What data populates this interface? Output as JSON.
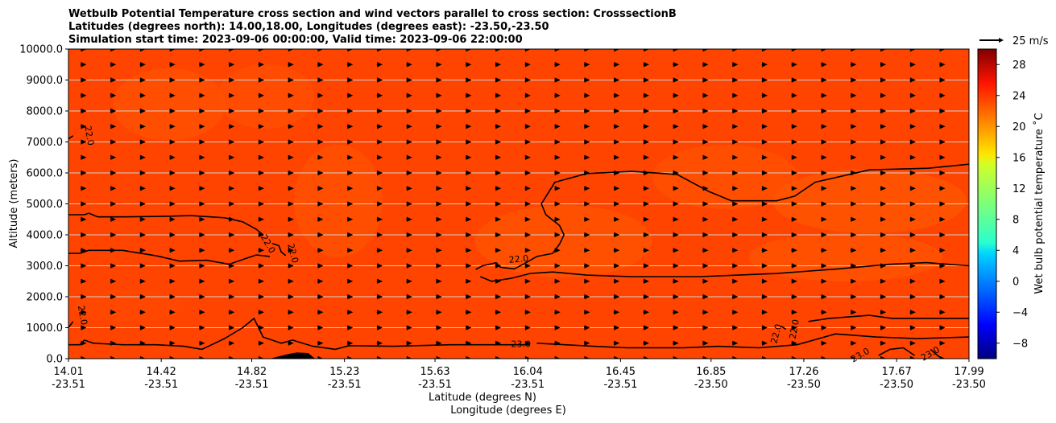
{
  "title_lines": [
    "Wetbulb Potential Temperature cross section and wind vectors parallel to cross section: CrosssectionB",
    "Latitudes (degrees north): 14.00,18.00, Longitudes (degrees east): -23.50,-23.50",
    "Simulation start time: 2023-09-06 00:00:00, Valid time: 2023-09-06 22:00:00"
  ],
  "chart_data": {
    "type": "heatmap",
    "subtype": "filled-contour cross section with wind vectors",
    "ylabel": "Altitude (meters)",
    "xlabel_lines": [
      "Latitude (degrees N)",
      "Longitude (degrees E)"
    ],
    "ylim": [
      0,
      10000
    ],
    "xlim": [
      14.01,
      17.99
    ],
    "y_ticks": [
      {
        "value": 0,
        "label": "0.0"
      },
      {
        "value": 1000,
        "label": "1000.0"
      },
      {
        "value": 2000,
        "label": "2000.0"
      },
      {
        "value": 3000,
        "label": "3000.0"
      },
      {
        "value": 4000,
        "label": "4000.0"
      },
      {
        "value": 5000,
        "label": "5000.0"
      },
      {
        "value": 6000,
        "label": "6000.0"
      },
      {
        "value": 7000,
        "label": "7000.0"
      },
      {
        "value": 8000,
        "label": "8000.0"
      },
      {
        "value": 9000,
        "label": "9000.0"
      },
      {
        "value": 10000,
        "label": "10000.0"
      }
    ],
    "x_ticks": [
      {
        "value": 14.01,
        "lat": "14.01",
        "lon": "-23.51"
      },
      {
        "value": 14.42,
        "lat": "14.42",
        "lon": "-23.51"
      },
      {
        "value": 14.82,
        "lat": "14.82",
        "lon": "-23.51"
      },
      {
        "value": 15.23,
        "lat": "15.23",
        "lon": "-23.51"
      },
      {
        "value": 15.63,
        "lat": "15.63",
        "lon": "-23.51"
      },
      {
        "value": 16.04,
        "lat": "16.04",
        "lon": "-23.51"
      },
      {
        "value": 16.45,
        "lat": "16.45",
        "lon": "-23.51"
      },
      {
        "value": 16.85,
        "lat": "16.85",
        "lon": "-23.50"
      },
      {
        "value": 17.26,
        "lat": "17.26",
        "lon": "-23.50"
      },
      {
        "value": 17.67,
        "lat": "17.67",
        "lon": "-23.50"
      },
      {
        "value": 17.99,
        "lat": "17.99",
        "lon": "-23.50"
      }
    ],
    "grid": "horizontal",
    "colorbar": {
      "label": "Wet bulb potential temperature ˚C",
      "vmin": -10,
      "vmax": 30,
      "colormap": "jet",
      "ticks": [
        {
          "value": -8,
          "label": "−8"
        },
        {
          "value": -4,
          "label": "−4"
        },
        {
          "value": 0,
          "label": "0"
        },
        {
          "value": 4,
          "label": "4"
        },
        {
          "value": 8,
          "label": "8"
        },
        {
          "value": 12,
          "label": "12"
        },
        {
          "value": 16,
          "label": "16"
        },
        {
          "value": 20,
          "label": "20"
        },
        {
          "value": 24,
          "label": "24"
        },
        {
          "value": 28,
          "label": "28"
        }
      ]
    },
    "quiver_key": {
      "label": "25 m/s",
      "speed": 25
    },
    "background_value": 23.0,
    "contour_lines": [
      {
        "level": 22.0,
        "points": [
          [
            14.01,
            4650
          ],
          [
            14.08,
            4650
          ],
          [
            14.1,
            4700
          ],
          [
            14.14,
            4580
          ],
          [
            14.25,
            4580
          ],
          [
            14.45,
            4600
          ],
          [
            14.55,
            4620
          ],
          [
            14.7,
            4550
          ],
          [
            14.78,
            4420
          ],
          [
            14.84,
            4180
          ],
          [
            14.87,
            4000
          ]
        ]
      },
      {
        "level": 22.0,
        "points": [
          [
            14.01,
            3400
          ],
          [
            14.06,
            3400
          ],
          [
            14.1,
            3500
          ],
          [
            14.25,
            3500
          ],
          [
            14.4,
            3320
          ],
          [
            14.5,
            3150
          ],
          [
            14.62,
            3180
          ],
          [
            14.72,
            3050
          ],
          [
            14.78,
            3200
          ],
          [
            14.84,
            3350
          ],
          [
            14.9,
            3300
          ]
        ]
      },
      {
        "level": 22.0,
        "points": [
          [
            14.91,
            3720
          ],
          [
            14.94,
            3650
          ],
          [
            14.95,
            3450
          ],
          [
            14.97,
            3330
          ]
        ]
      },
      {
        "level": 22.0,
        "points": [
          [
            14.01,
            7100
          ],
          [
            14.03,
            7200
          ]
        ]
      },
      {
        "level": 22.0,
        "points": [
          [
            14.01,
            1000
          ],
          [
            14.03,
            1200
          ]
        ]
      },
      {
        "level": 22.0,
        "points": [
          [
            15.81,
            2880
          ],
          [
            15.84,
            3000
          ],
          [
            15.9,
            3100
          ],
          [
            15.92,
            2950
          ],
          [
            15.98,
            2900
          ],
          [
            16.02,
            3050
          ],
          [
            16.08,
            3300
          ],
          [
            16.15,
            3400
          ],
          [
            16.18,
            3700
          ],
          [
            16.2,
            4000
          ],
          [
            16.18,
            4300
          ],
          [
            16.12,
            4650
          ],
          [
            16.1,
            5000
          ],
          [
            16.16,
            5700
          ],
          [
            16.3,
            5980
          ],
          [
            16.5,
            6050
          ],
          [
            16.7,
            5950
          ],
          [
            16.84,
            5400
          ],
          [
            16.94,
            5100
          ],
          [
            17.14,
            5100
          ],
          [
            17.22,
            5250
          ],
          [
            17.31,
            5700
          ],
          [
            17.55,
            6100
          ],
          [
            17.81,
            6150
          ],
          [
            17.99,
            6280
          ]
        ]
      },
      {
        "level": 22.0,
        "points": [
          [
            15.83,
            2650
          ],
          [
            15.88,
            2500
          ],
          [
            15.97,
            2600
          ],
          [
            16.05,
            2750
          ],
          [
            16.15,
            2800
          ],
          [
            16.3,
            2700
          ],
          [
            16.5,
            2650
          ],
          [
            16.8,
            2650
          ],
          [
            17.14,
            2750
          ],
          [
            17.41,
            2900
          ],
          [
            17.64,
            3050
          ],
          [
            17.8,
            3100
          ],
          [
            17.99,
            3000
          ]
        ]
      },
      {
        "level": 22.0,
        "points": [
          [
            17.28,
            1200
          ],
          [
            17.37,
            1300
          ],
          [
            17.55,
            1400
          ],
          [
            17.65,
            1300
          ],
          [
            17.78,
            1300
          ],
          [
            17.99,
            1300
          ]
        ]
      },
      {
        "level": 22.0,
        "points": [
          [
            17.16,
            1050
          ],
          [
            17.18,
            950
          ]
        ]
      },
      {
        "level": 23.0,
        "points": [
          [
            14.01,
            450
          ],
          [
            14.06,
            450
          ],
          [
            14.08,
            600
          ],
          [
            14.12,
            500
          ],
          [
            14.25,
            450
          ],
          [
            14.4,
            450
          ],
          [
            14.52,
            400
          ],
          [
            14.6,
            300
          ],
          [
            14.7,
            650
          ],
          [
            14.78,
            1000
          ],
          [
            14.83,
            1300
          ],
          [
            14.85,
            1000
          ],
          [
            14.87,
            700
          ],
          [
            14.95,
            500
          ],
          [
            15.0,
            600
          ],
          [
            15.09,
            400
          ],
          [
            15.19,
            300
          ],
          [
            15.25,
            420
          ],
          [
            15.45,
            400
          ],
          [
            15.7,
            450
          ],
          [
            15.91,
            450
          ],
          [
            16.05,
            450
          ]
        ]
      },
      {
        "level": 23.0,
        "points": [
          [
            16.08,
            500
          ],
          [
            16.33,
            400
          ],
          [
            16.48,
            350
          ],
          [
            16.73,
            350
          ],
          [
            16.88,
            400
          ],
          [
            17.06,
            350
          ],
          [
            17.23,
            450
          ],
          [
            17.4,
            800
          ],
          [
            17.58,
            700
          ],
          [
            17.76,
            650
          ],
          [
            17.99,
            700
          ]
        ]
      },
      {
        "level": 23.0,
        "points": [
          [
            17.59,
            100
          ],
          [
            17.64,
            300
          ],
          [
            17.7,
            350
          ],
          [
            17.75,
            100
          ]
        ]
      },
      {
        "level": 23.0,
        "points": [
          [
            17.82,
            300
          ],
          [
            17.86,
            50
          ]
        ]
      }
    ],
    "contour_labels": [
      {
        "text": "22.0",
        "x": 14.1,
        "y": 7200,
        "angle": 80
      },
      {
        "text": "22.0",
        "x": 14.89,
        "y": 3700,
        "angle": 60
      },
      {
        "text": "22.0",
        "x": 15.0,
        "y": 3400,
        "angle": 75
      },
      {
        "text": "22.0",
        "x": 16.0,
        "y": 3200,
        "angle": -5
      },
      {
        "text": "22.0",
        "x": 14.07,
        "y": 1400,
        "angle": 80
      },
      {
        "text": "22.0",
        "x": 17.14,
        "y": 800,
        "angle": -75
      },
      {
        "text": "22.0",
        "x": 17.22,
        "y": 950,
        "angle": -80
      },
      {
        "text": "23.0",
        "x": 16.01,
        "y": 450,
        "angle": 0
      },
      {
        "text": "23.0",
        "x": 17.51,
        "y": 100,
        "angle": -30
      },
      {
        "text": "23.0",
        "x": 17.82,
        "y": 150,
        "angle": -30
      }
    ],
    "warm_patches": [
      {
        "value": 24.5,
        "points": [
          [
            14.9,
            0
          ],
          [
            14.98,
            150
          ],
          [
            15.02,
            200
          ],
          [
            15.07,
            180
          ],
          [
            15.1,
            0
          ]
        ]
      }
    ],
    "wind_vectors": {
      "columns": 30,
      "rows": 21,
      "direction": "toward increasing latitude",
      "speed_ms": 8
    }
  }
}
